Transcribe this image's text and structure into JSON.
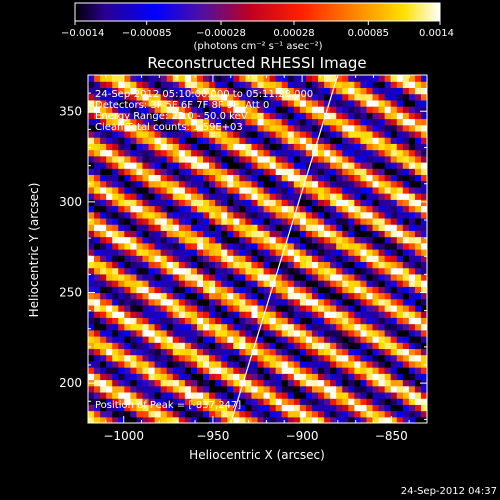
{
  "chart_data": {
    "type": "heatmap",
    "title": "Reconstructed RHESSI Image",
    "xlabel": "Heliocentric X (arcsec)",
    "ylabel": "Heliocentric Y (arcsec)",
    "xlim": [
      -1020,
      -830
    ],
    "ylim": [
      178,
      370
    ],
    "x_ticks": [
      -1000,
      -950,
      -900,
      -850
    ],
    "x_tick_labels": [
      "−1000",
      "−950",
      "−900",
      "−850"
    ],
    "y_ticks": [
      200,
      250,
      300,
      350
    ],
    "y_tick_labels": [
      "200",
      "250",
      "300",
      "350"
    ],
    "colorbar": {
      "ticks": [
        -0.0014,
        -0.00085,
        -0.00028,
        0.00028,
        0.00085,
        0.0014
      ],
      "tick_labels": [
        "−0.0014",
        "−0.00085",
        "−0.00028",
        "0.00028",
        "0.00085",
        "0.0014"
      ],
      "label": "(photons cm⁻² s⁻¹ asec⁻²)",
      "colormap": "rainbow-black-blue-red-yellow-white",
      "range": [
        -0.0014,
        0.0014
      ]
    },
    "pattern": {
      "description": "diagonal stripe modulation pattern",
      "fringe_pitch_arcsec": 19,
      "orientation_deg": 62
    },
    "limb_line": {
      "points": [
        [
          -940,
          178
        ],
        [
          -880,
          370
        ]
      ],
      "color": "#ffffff"
    },
    "annotations": [
      "24-Sep-2012 05:10:00.000 to 05:11:28.000",
      "Detectors: 3F 5F 6F 7F 8F 9F, Att 0",
      "Energy Range: 25.0 - 50.0 keV",
      "Clean     Total counts: 1.59E+03"
    ],
    "peak_label": "Position of Peak = [-837,247]",
    "timestamp": "24-Sep-2012 04:37"
  }
}
